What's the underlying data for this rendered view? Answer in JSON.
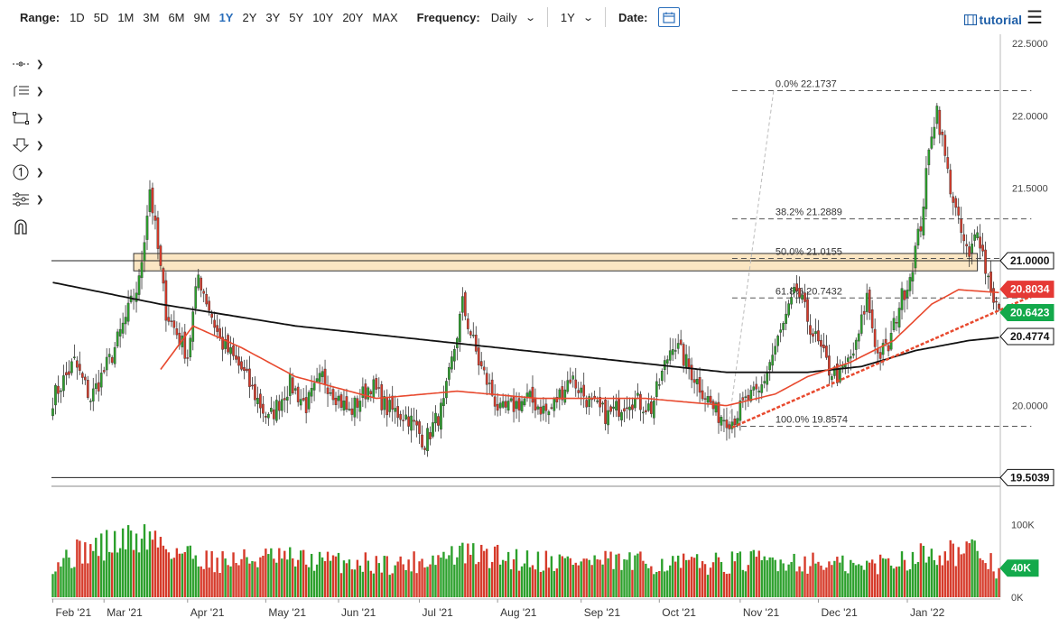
{
  "toolbar": {
    "range_label": "Range:",
    "ranges": [
      "1D",
      "5D",
      "1M",
      "3M",
      "6M",
      "9M",
      "1Y",
      "2Y",
      "3Y",
      "5Y",
      "10Y",
      "20Y",
      "MAX"
    ],
    "active_range": "1Y",
    "frequency_label": "Frequency:",
    "frequency_value": "Daily",
    "period_value": "1Y",
    "date_label": "Date:",
    "tutorial_label": "tutorial"
  },
  "tools": [
    "crosshair-tool",
    "line-list-tool",
    "rectangle-tool",
    "arrow-down-tool",
    "number-one-tool",
    "settings-tool",
    "magnet-tool"
  ],
  "colors": {
    "up": "#2ca02c",
    "down": "#d63a2a",
    "ma_fast": "#e8492e",
    "ma_slow": "#111111",
    "zone_fill": "#fbe6c3",
    "fib_line": "#555555",
    "trend_line": "#e8492e",
    "badge_up": "#13a94b",
    "badge_red": "#e53935"
  },
  "chart_data": {
    "type": "candlestick",
    "y_axis": {
      "ylim": [
        19.45,
        22.55
      ],
      "ticks": [
        22.5,
        22.0,
        21.5,
        21.0,
        20.5,
        20.0
      ],
      "tick_labels": [
        "22.5000",
        "22.0000",
        "21.5000",
        "21.0000",
        "20.5000",
        "20.0000"
      ]
    },
    "x_axis": {
      "labels": [
        "Feb '21",
        "Mar '21",
        "Apr '21",
        "May '21",
        "Jun '21",
        "Jul '21",
        "Aug '21",
        "Sep '21",
        "Oct '21",
        "Nov '21",
        "Dec '21",
        "Jan '22"
      ]
    },
    "price_anchors": [
      [
        0,
        20.05
      ],
      [
        8,
        20.3
      ],
      [
        14,
        20.05
      ],
      [
        22,
        20.35
      ],
      [
        32,
        20.85
      ],
      [
        36,
        21.5
      ],
      [
        42,
        20.65
      ],
      [
        50,
        20.35
      ],
      [
        54,
        20.9
      ],
      [
        62,
        20.45
      ],
      [
        70,
        20.25
      ],
      [
        80,
        19.9
      ],
      [
        88,
        20.15
      ],
      [
        94,
        20.0
      ],
      [
        100,
        20.2
      ],
      [
        110,
        19.95
      ],
      [
        118,
        20.15
      ],
      [
        124,
        19.98
      ],
      [
        132,
        19.92
      ],
      [
        138,
        19.75
      ],
      [
        145,
        20.0
      ],
      [
        152,
        20.7
      ],
      [
        158,
        20.3
      ],
      [
        166,
        19.95
      ],
      [
        176,
        20.05
      ],
      [
        184,
        19.95
      ],
      [
        192,
        20.2
      ],
      [
        200,
        20.0
      ],
      [
        206,
        19.93
      ],
      [
        214,
        20.05
      ],
      [
        222,
        19.98
      ],
      [
        230,
        20.45
      ],
      [
        238,
        20.2
      ],
      [
        246,
        19.95
      ],
      [
        252,
        19.9
      ],
      [
        258,
        20.05
      ],
      [
        262,
        20.08
      ],
      [
        266,
        20.3
      ],
      [
        272,
        20.6
      ],
      [
        276,
        20.8
      ],
      [
        282,
        20.5
      ],
      [
        288,
        20.25
      ],
      [
        292,
        20.2
      ],
      [
        298,
        20.4
      ],
      [
        302,
        20.75
      ],
      [
        306,
        20.35
      ],
      [
        310,
        20.4
      ],
      [
        314,
        20.7
      ],
      [
        318,
        20.9
      ],
      [
        322,
        21.25
      ],
      [
        326,
        21.9
      ],
      [
        328,
        22.05
      ],
      [
        332,
        21.6
      ],
      [
        336,
        21.25
      ],
      [
        340,
        21.0
      ],
      [
        343,
        21.25
      ],
      [
        346,
        20.95
      ],
      [
        349,
        20.75
      ],
      [
        351,
        20.65
      ]
    ],
    "candle_count": 352,
    "ma_fast": {
      "anchors": [
        [
          40,
          20.25
        ],
        [
          52,
          20.55
        ],
        [
          70,
          20.4
        ],
        [
          90,
          20.2
        ],
        [
          120,
          20.05
        ],
        [
          150,
          20.1
        ],
        [
          180,
          20.05
        ],
        [
          220,
          20.05
        ],
        [
          250,
          20.0
        ],
        [
          268,
          20.08
        ],
        [
          280,
          20.2
        ],
        [
          296,
          20.3
        ],
        [
          312,
          20.45
        ],
        [
          326,
          20.7
        ],
        [
          336,
          20.8
        ],
        [
          351,
          20.78
        ]
      ]
    },
    "ma_slow": {
      "anchors": [
        [
          0,
          20.85
        ],
        [
          40,
          20.7
        ],
        [
          90,
          20.55
        ],
        [
          150,
          20.43
        ],
        [
          200,
          20.33
        ],
        [
          250,
          20.23
        ],
        [
          280,
          20.23
        ],
        [
          300,
          20.27
        ],
        [
          320,
          20.38
        ],
        [
          340,
          20.45
        ],
        [
          351,
          20.47
        ]
      ]
    },
    "resistance_zone": {
      "y_top": 21.05,
      "y_bottom": 20.93,
      "x_start": 30,
      "x_end": 343
    },
    "fibonacci": [
      {
        "label": "0.0% 22.1737",
        "value": 22.1737
      },
      {
        "label": "38.2% 21.2889",
        "value": 21.2889
      },
      {
        "label": "50.0% 21.0155",
        "value": 21.0155
      },
      {
        "label": "61.8% 20.7432",
        "value": 20.7432
      },
      {
        "label": "100.0% 19.8574",
        "value": 19.8574
      }
    ],
    "fib_x_start": 252,
    "fib_x_end": 363,
    "trendline": {
      "from": [
        252,
        19.85
      ],
      "to": [
        371,
        20.82
      ]
    },
    "horizontal_lines": [
      {
        "value": 21.0,
        "label": "21.0000"
      },
      {
        "value": 19.5039,
        "label": "19.5039"
      }
    ],
    "price_badges": [
      {
        "value": 21.0,
        "label": "21.0000",
        "style": "white"
      },
      {
        "value": 20.8034,
        "label": "20.8034",
        "style": "red"
      },
      {
        "value": 20.6423,
        "label": "20.6423",
        "style": "green"
      },
      {
        "value": 20.4774,
        "label": "20.4774",
        "style": "white"
      },
      {
        "value": 19.5039,
        "label": "19.5039",
        "style": "white"
      }
    ],
    "volume": {
      "ylim": [
        0,
        145
      ],
      "tick_labels": [
        "100K",
        "0K"
      ],
      "ticks": [
        100,
        0
      ],
      "last_label": "40K",
      "last_value": 40,
      "peak_anchors": [
        [
          0,
          58
        ],
        [
          12,
          78
        ],
        [
          28,
          95
        ],
        [
          36,
          102
        ],
        [
          44,
          80
        ],
        [
          60,
          60
        ],
        [
          80,
          65
        ],
        [
          100,
          60
        ],
        [
          130,
          55
        ],
        [
          150,
          72
        ],
        [
          180,
          62
        ],
        [
          210,
          58
        ],
        [
          240,
          55
        ],
        [
          270,
          62
        ],
        [
          300,
          50
        ],
        [
          330,
          78
        ],
        [
          345,
          72
        ],
        [
          351,
          40
        ]
      ]
    }
  }
}
